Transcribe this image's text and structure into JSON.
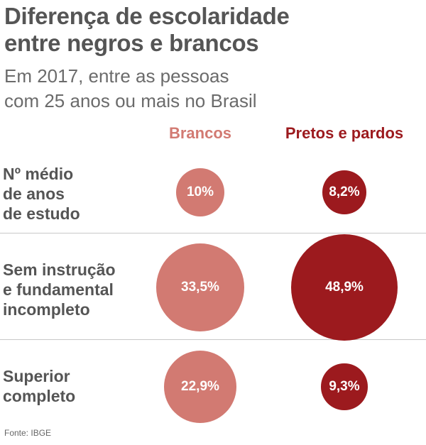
{
  "chart_data": {
    "type": "bubble",
    "title": "Diferença de escolaridade entre negros e brancos",
    "subtitle": "Em 2017, entre as pessoas com 25 anos ou mais no Brasil",
    "source": "Fonte: IBGE",
    "series": [
      {
        "name": "Brancos",
        "color": "#d27a72",
        "values": [
          10,
          33.5,
          22.9
        ],
        "value_labels": [
          "10%",
          "33,5%",
          "22,9%"
        ]
      },
      {
        "name": "Pretos e pardos",
        "color": "#9c1a1e",
        "values": [
          8.2,
          48.9,
          9.3
        ],
        "value_labels": [
          "8,2%",
          "48,9%",
          "9,3%"
        ]
      }
    ],
    "categories": [
      {
        "lines": [
          "Nº médio",
          "de anos",
          "de estudo"
        ]
      },
      {
        "lines": [
          "Sem instrução",
          "e fundamental",
          "incompleto"
        ]
      },
      {
        "lines": [
          "Superior",
          "completo"
        ]
      }
    ]
  },
  "header": {
    "title_lines": [
      "Diferença de escolaridade",
      "entre negros e brancos"
    ],
    "subtitle_lines": [
      "Em 2017, entre as pessoas",
      "com 25 anos ou mais no Brasil"
    ]
  }
}
